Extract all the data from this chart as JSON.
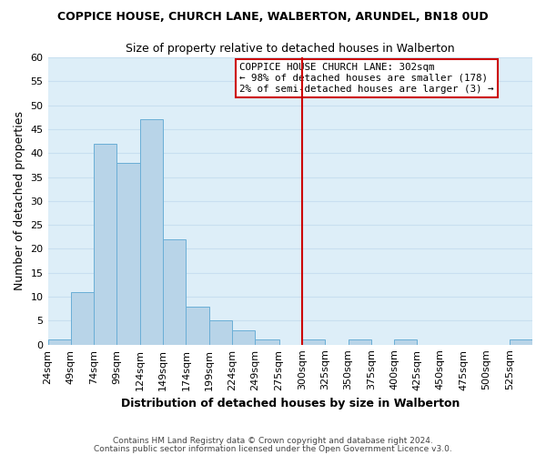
{
  "title": "COPPICE HOUSE, CHURCH LANE, WALBERTON, ARUNDEL, BN18 0UD",
  "subtitle": "Size of property relative to detached houses in Walberton",
  "xlabel": "Distribution of detached houses by size in Walberton",
  "ylabel": "Number of detached properties",
  "bar_edges": [
    24,
    49,
    74,
    99,
    124,
    149,
    174,
    199,
    224,
    249,
    275,
    300,
    325,
    350,
    375,
    400,
    425,
    450,
    475,
    500,
    525,
    550
  ],
  "bar_heights": [
    1,
    11,
    42,
    38,
    47,
    22,
    8,
    5,
    3,
    1,
    0,
    1,
    0,
    1,
    0,
    1,
    0,
    0,
    0,
    0,
    1
  ],
  "bar_color": "#b8d4e8",
  "bar_edge_color": "#6aaed6",
  "subject_line_x": 300,
  "subject_line_color": "#cc0000",
  "ylim": [
    0,
    60
  ],
  "xlim": [
    24,
    550
  ],
  "annotation_title": "COPPICE HOUSE CHURCH LANE: 302sqm",
  "annotation_line1": "← 98% of detached houses are smaller (178)",
  "annotation_line2": "2% of semi-detached houses are larger (3) →",
  "footer1": "Contains HM Land Registry data © Crown copyright and database right 2024.",
  "footer2": "Contains public sector information licensed under the Open Government Licence v3.0.",
  "tick_labels": [
    "24sqm",
    "49sqm",
    "74sqm",
    "99sqm",
    "124sqm",
    "149sqm",
    "174sqm",
    "199sqm",
    "224sqm",
    "249sqm",
    "275sqm",
    "300sqm",
    "325sqm",
    "350sqm",
    "375sqm",
    "400sqm",
    "425sqm",
    "450sqm",
    "475sqm",
    "500sqm",
    "525sqm"
  ],
  "yticks": [
    0,
    5,
    10,
    15,
    20,
    25,
    30,
    35,
    40,
    45,
    50,
    55,
    60
  ],
  "grid_color": "#c8dff0",
  "background_color": "#ddeef8"
}
